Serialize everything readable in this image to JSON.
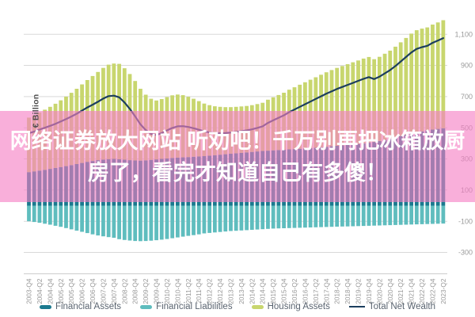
{
  "overlay": {
    "line1": "网络证券放大网站 听劝吧！千万别再把冰箱放厨",
    "line2": "房了，看完才知道自己有多傻！",
    "band_color": "#f67ec4",
    "band_opacity": 0.62,
    "text_color": "#ffffff"
  },
  "chart_data": {
    "type": "bar",
    "subtype": "stacked-bars-with-line",
    "title": "",
    "xlabel": "",
    "ylabel": "€ Billion",
    "grid": true,
    "legend_position": "bottom",
    "ylim": [
      -420,
      1215
    ],
    "yticks": [
      1100,
      900,
      700,
      500,
      300,
      100,
      -100,
      -300
    ],
    "ytick_labels": [
      "1,100",
      "900",
      "700",
      "500",
      "300",
      "100",
      "-100",
      "-300"
    ],
    "n_points": 79,
    "x_tick_every": 2,
    "x_tick_labels": [
      "2003-Q4",
      "2004-Q2",
      "2004-Q4",
      "2005-Q2",
      "2005-Q4",
      "2006-Q2",
      "2006-Q4",
      "2007-Q2",
      "2007-Q4",
      "2008-Q2",
      "2008-Q4",
      "2009-Q2",
      "2009-Q4",
      "2010-Q2",
      "2010-Q4",
      "2011-Q2",
      "2011-Q4",
      "2012-Q2",
      "2012-Q4",
      "2013-Q2",
      "2013-Q4",
      "2014-Q2",
      "2014-Q4",
      "2015-Q2",
      "2015-Q4",
      "2016-Q2",
      "2016-Q4",
      "2017-Q2",
      "2017-Q4",
      "2018-Q2",
      "2018-Q4",
      "2019-Q2",
      "2019-Q4",
      "2020-Q2",
      "2020-Q4",
      "2021-Q2",
      "2021-Q4",
      "2022-Q2",
      "2022-Q4",
      "2023-Q2"
    ],
    "series": [
      {
        "name": "Financial Assets",
        "color": "#1b7a8f",
        "render": "bar-stack",
        "values": [
          215,
          220,
          225,
          230,
          236,
          242,
          248,
          254,
          260,
          267,
          274,
          281,
          287,
          292,
          296,
          299,
          300,
          298,
          295,
          292,
          290,
          289,
          291,
          294,
          297,
          300,
          303,
          306,
          308,
          310,
          312,
          314,
          316,
          318,
          321,
          324,
          327,
          330,
          333,
          336,
          339,
          342,
          345,
          348,
          351,
          353,
          355,
          357,
          359,
          361,
          363,
          365,
          367,
          369,
          372,
          375,
          378,
          381,
          384,
          387,
          390,
          393,
          396,
          400,
          404,
          409,
          415,
          422,
          430,
          438,
          447,
          456,
          464,
          471,
          477,
          483,
          488,
          493,
          497
        ]
      },
      {
        "name": "Financial Liabilities",
        "color": "#5fbdbe",
        "render": "bar-negative",
        "values": [
          -100,
          -105,
          -110,
          -116,
          -122,
          -129,
          -136,
          -144,
          -152,
          -160,
          -168,
          -176,
          -184,
          -191,
          -197,
          -202,
          -206,
          -215,
          -220,
          -224,
          -227,
          -228,
          -227,
          -225,
          -222,
          -218,
          -214,
          -209,
          -204,
          -199,
          -194,
          -189,
          -184,
          -178,
          -175,
          -172,
          -169,
          -166,
          -163,
          -161,
          -159,
          -157,
          -155,
          -153,
          -151,
          -149,
          -147,
          -146,
          -145,
          -144,
          -143,
          -142,
          -141,
          -140,
          -139,
          -138,
          -137,
          -136,
          -135,
          -134,
          -133,
          -132,
          -131,
          -130,
          -129,
          -128,
          -127,
          -126,
          -125,
          -124,
          -123,
          -122,
          -121,
          -120,
          -119,
          -118,
          -117,
          -116,
          -115
        ]
      },
      {
        "name": "Housing Assets",
        "color": "#c8d66e",
        "render": "bar-stack",
        "values": [
          350,
          360,
          373,
          386,
          398,
          412,
          428,
          446,
          464,
          483,
          504,
          525,
          545,
          566,
          588,
          606,
          612,
          612,
          587,
          553,
          510,
          461,
          421,
          392,
          378,
          384,
          394,
          402,
          405,
          399,
          387,
          372,
          355,
          337,
          324,
          314,
          307,
          302,
          299,
          298,
          298,
          298,
          300,
          304,
          309,
          327,
          340,
          353,
          366,
          383,
          397,
          411,
          425,
          439,
          452,
          465,
          478,
          489,
          500,
          509,
          518,
          527,
          536,
          544,
          550,
          531,
          540,
          553,
          565,
          582,
          601,
          620,
          640,
          655,
          659,
          661,
          674,
          683,
          693
        ]
      },
      {
        "name": "Total Net Wealth",
        "color": "#1c3e5e",
        "render": "line",
        "values": [
          465,
          475,
          488,
          500,
          512,
          525,
          540,
          556,
          572,
          590,
          610,
          630,
          648,
          667,
          687,
          703,
          706,
          695,
          662,
          621,
          573,
          522,
          485,
          461,
          453,
          466,
          483,
          499,
          509,
          510,
          505,
          497,
          487,
          477,
          470,
          466,
          465,
          466,
          469,
          473,
          478,
          483,
          490,
          499,
          509,
          531,
          548,
          564,
          580,
          600,
          617,
          634,
          651,
          668,
          685,
          702,
          719,
          734,
          749,
          762,
          775,
          788,
          801,
          814,
          825,
          812,
          828,
          849,
          870,
          896,
          925,
          954,
          983,
          1006,
          1017,
          1026,
          1045,
          1060,
          1075
        ]
      }
    ],
    "axis_colors": {
      "grid": "#d9d9d9",
      "axis_line": "#cccccc",
      "tick_text": "#999999"
    }
  }
}
